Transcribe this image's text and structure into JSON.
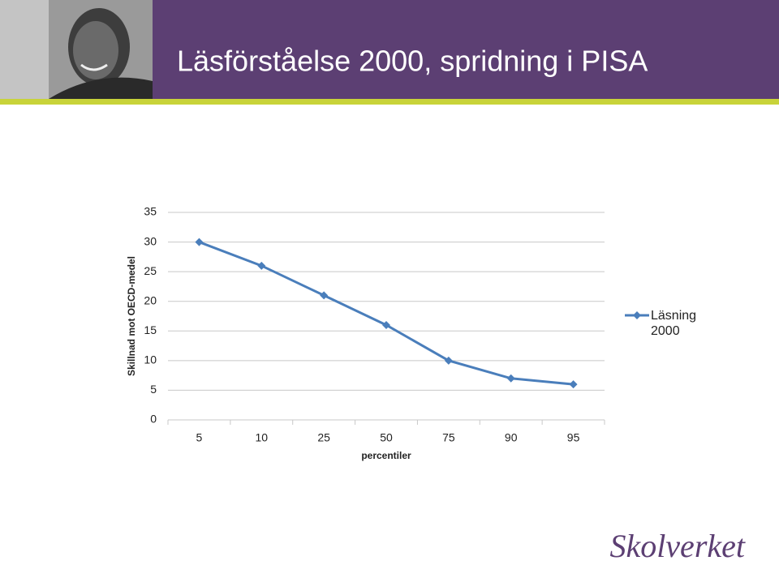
{
  "chart_data": {
    "type": "line",
    "title": "Läsförståelse 2000, spridning i PISA",
    "ylabel": "Skillnad mot OECD-medel",
    "xlabel": "percentiler",
    "categories": [
      "5",
      "10",
      "25",
      "50",
      "75",
      "90",
      "95"
    ],
    "series": [
      {
        "name": "Läsning 2000",
        "color": "#4a7ebb",
        "values": [
          30,
          26,
          21,
          16,
          10,
          7,
          6
        ]
      }
    ],
    "ylim": [
      0,
      35
    ],
    "yticks": [
      0,
      5,
      10,
      15,
      20,
      25,
      30,
      35
    ],
    "grid": true,
    "legend": "right"
  },
  "footer": {
    "logo": "Skolverket"
  }
}
